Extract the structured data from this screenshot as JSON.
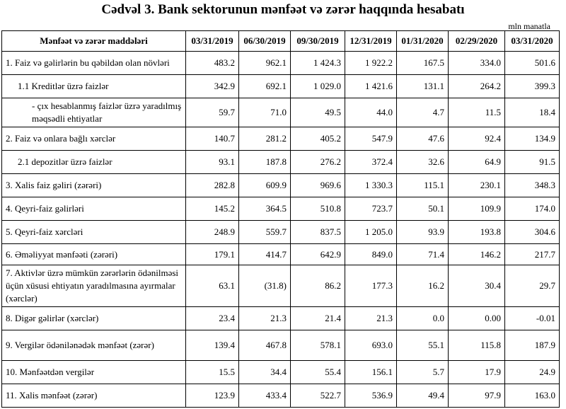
{
  "header": {
    "title": "Cədvəl 3. Bank sektorunun mənfəət və zərər haqqında hesabatı",
    "unit": "mln manatla"
  },
  "table": {
    "columns": [
      "Mənfəət və zərər maddələri",
      "03/31/2019",
      "06/30/2019",
      "09/30/2019",
      "12/31/2019",
      "01/31/2020",
      "02/29/2020",
      "03/31/2020"
    ],
    "rows": [
      [
        "1. Faiz və gəlirlərin bu qəbildən olan növləri",
        "483.2",
        "962.1",
        "1 424.3",
        "1 922.2",
        "167.5",
        "334.0",
        "501.6"
      ],
      [
        "1.1 Kreditlər üzrə faizlər",
        "342.9",
        "692.1",
        "1 029.0",
        "1 421.6",
        "131.1",
        "264.2",
        "399.3"
      ],
      [
        "-  çıx hesablanmış faizlər üzrə yaradılmış məqsədli ehtiyatlar",
        "59.7",
        "71.0",
        "49.5",
        "44.0",
        "4.7",
        "11.5",
        "18.4"
      ],
      [
        "2. Faiz və onlara bağlı xərclər",
        "140.7",
        "281.2",
        "405.2",
        "547.9",
        "47.6",
        "92.4",
        "134.9"
      ],
      [
        "2.1 depozitlər üzrə faizlər",
        "93.1",
        "187.8",
        "276.2",
        "372.4",
        "32.6",
        "64.9",
        "91.5"
      ],
      [
        "3. Xalis faiz gəliri (zərəri)",
        "282.8",
        "609.9",
        "969.6",
        "1 330.3",
        "115.1",
        "230.1",
        "348.3"
      ],
      [
        "4. Qeyri-faiz gəlirləri",
        "145.2",
        "364.5",
        "510.8",
        "723.7",
        "50.1",
        "109.9",
        "174.0"
      ],
      [
        "5. Qeyri-faiz xərcləri",
        "248.9",
        "559.7",
        "837.5",
        "1 205.0",
        "93.9",
        "193.8",
        "304.6"
      ],
      [
        "6. Əməliyyat mənfəəti (zərəri)",
        "179.1",
        "414.7",
        "642.9",
        "849.0",
        "71.4",
        "146.2",
        "217.7"
      ],
      [
        "7. Aktivlər üzrə mümkün zərərlərin ödənilməsi üçün xüsusi ehtiyatın yaradılmasına ayırmalar (xərclər)",
        "63.1",
        "(31.8)",
        "86.2",
        "177.3",
        "16.2",
        "30.4",
        "29.7"
      ],
      [
        "8. Digər gəlirlər (xərclər)",
        "23.4",
        "21.3",
        "21.4",
        "21.3",
        "0.0",
        "0.00",
        "-0.01"
      ],
      [
        "9. Vergilər ödənilənədək mənfəət (zərər)",
        "139.4",
        "467.8",
        "578.1",
        "693.0",
        "55.1",
        "115.8",
        "187.9"
      ],
      [
        "10. Mənfəətdən vergilər",
        "15.5",
        "34.4",
        "55.4",
        "156.1",
        "5.7",
        "17.9",
        "24.9"
      ],
      [
        "11. Xalis mənfəət (zərər)",
        "123.9",
        "433.4",
        "522.7",
        "536.9",
        "49.4",
        "97.9",
        "163.0"
      ]
    ]
  }
}
